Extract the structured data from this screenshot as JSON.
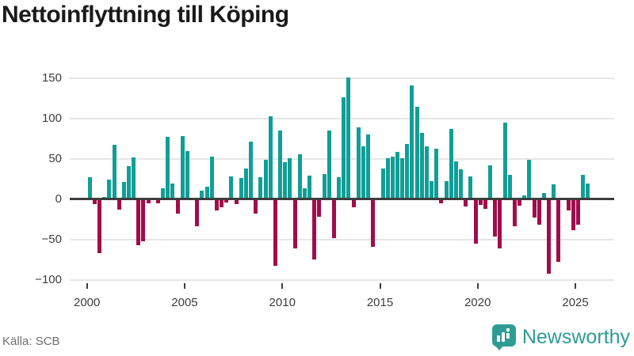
{
  "title": "Nettoinflyttning till Köping",
  "source": "Källa: SCB",
  "brand": {
    "name": "Newsworthy",
    "icon": "bar-chart-bubble-icon",
    "color": "#2e9c94"
  },
  "chart_data": {
    "type": "bar",
    "title": "Nettoinflyttning till Köping",
    "frequency": "quarterly",
    "start": "2000 Q1",
    "end": "2025 Q3",
    "positive_color": "#119e96",
    "negative_color": "#a00d4b",
    "grid": "horizontal",
    "ylim": [
      -100,
      150
    ],
    "y_ticks": [
      150,
      100,
      50,
      0,
      -50,
      -100
    ],
    "y_tick_labels": [
      "150",
      "100",
      "50",
      "0",
      "−50",
      "−100"
    ],
    "x_ticks": [
      2000,
      2005,
      2010,
      2015,
      2020,
      2025
    ],
    "series": [
      {
        "year": 2000,
        "values": [
          27,
          -6,
          -67,
          3
        ]
      },
      {
        "year": 2001,
        "values": [
          24,
          67,
          -13,
          21
        ]
      },
      {
        "year": 2002,
        "values": [
          41,
          52,
          -57,
          -52
        ]
      },
      {
        "year": 2003,
        "values": [
          -5,
          0,
          -5,
          13
        ]
      },
      {
        "year": 2004,
        "values": [
          77,
          19,
          -18,
          78
        ]
      },
      {
        "year": 2005,
        "values": [
          60,
          0,
          -34,
          11
        ]
      },
      {
        "year": 2006,
        "values": [
          15,
          53,
          -14,
          -10
        ]
      },
      {
        "year": 2007,
        "values": [
          -4,
          28,
          -6,
          26
        ]
      },
      {
        "year": 2008,
        "values": [
          38,
          71,
          -18,
          27
        ]
      },
      {
        "year": 2009,
        "values": [
          49,
          103,
          -83,
          85
        ]
      },
      {
        "year": 2010,
        "values": [
          46,
          51,
          -61,
          56
        ]
      },
      {
        "year": 2011,
        "values": [
          13,
          29,
          -75,
          -22
        ]
      },
      {
        "year": 2012,
        "values": [
          31,
          85,
          -48,
          27
        ]
      },
      {
        "year": 2013,
        "values": [
          126,
          151,
          -10,
          89
        ]
      },
      {
        "year": 2014,
        "values": [
          66,
          80,
          -59,
          0
        ]
      },
      {
        "year": 2015,
        "values": [
          38,
          51,
          53,
          59
        ]
      },
      {
        "year": 2016,
        "values": [
          51,
          68,
          141,
          115
        ]
      },
      {
        "year": 2017,
        "values": [
          82,
          66,
          22,
          63
        ]
      },
      {
        "year": 2018,
        "values": [
          -5,
          22,
          87,
          47
        ]
      },
      {
        "year": 2019,
        "values": [
          37,
          -9,
          28,
          -55
        ]
      },
      {
        "year": 2020,
        "values": [
          -7,
          -12,
          42,
          -46
        ]
      },
      {
        "year": 2021,
        "values": [
          -61,
          95,
          30,
          -34
        ]
      },
      {
        "year": 2022,
        "values": [
          -8,
          5,
          49,
          -23
        ]
      },
      {
        "year": 2023,
        "values": [
          -32,
          8,
          -93,
          18
        ]
      },
      {
        "year": 2024,
        "values": [
          -78,
          0,
          -14,
          -39
        ]
      },
      {
        "year": 2025,
        "values": [
          -32,
          30,
          19
        ]
      }
    ]
  }
}
